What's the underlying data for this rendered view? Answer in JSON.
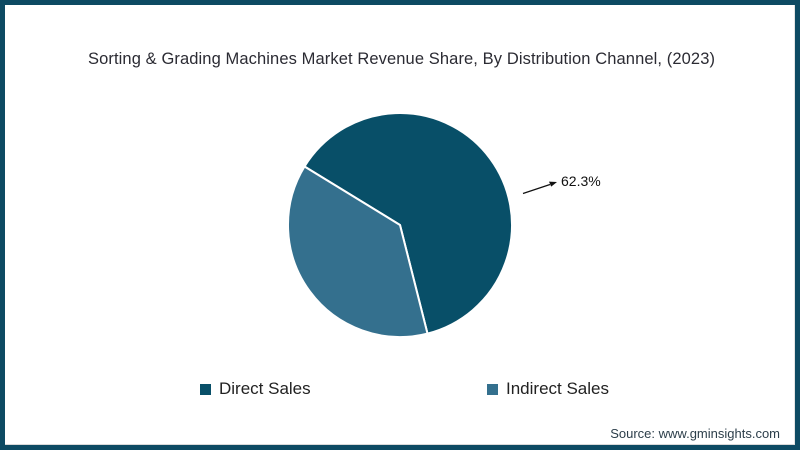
{
  "chart_data": {
    "type": "pie",
    "title": "Sorting & Grading Machines Market Revenue Share, By Distribution Channel, (2023)",
    "unit": "%",
    "slices": [
      {
        "label": "Direct Sales",
        "value": 62.3,
        "color": "#084f68"
      },
      {
        "label": "Indirect Sales",
        "value": 37.7,
        "color": "#34708e"
      }
    ],
    "annotations": [
      {
        "text": "62.3%",
        "target_slice": "Direct Sales",
        "position": "right-of-pie"
      }
    ],
    "legend_position": "bottom",
    "start_angle_deg": 148.5,
    "divider_stroke_color": "#ffffff"
  },
  "source": {
    "text": "Source: www.gminsights.com"
  },
  "colors": {
    "frame_border": "#0d4a63",
    "background": "#ffffff",
    "title_text": "#2b2b33",
    "annotation_text": "#111111",
    "legend_text": "#222222",
    "source_text": "#2c3e4a"
  }
}
